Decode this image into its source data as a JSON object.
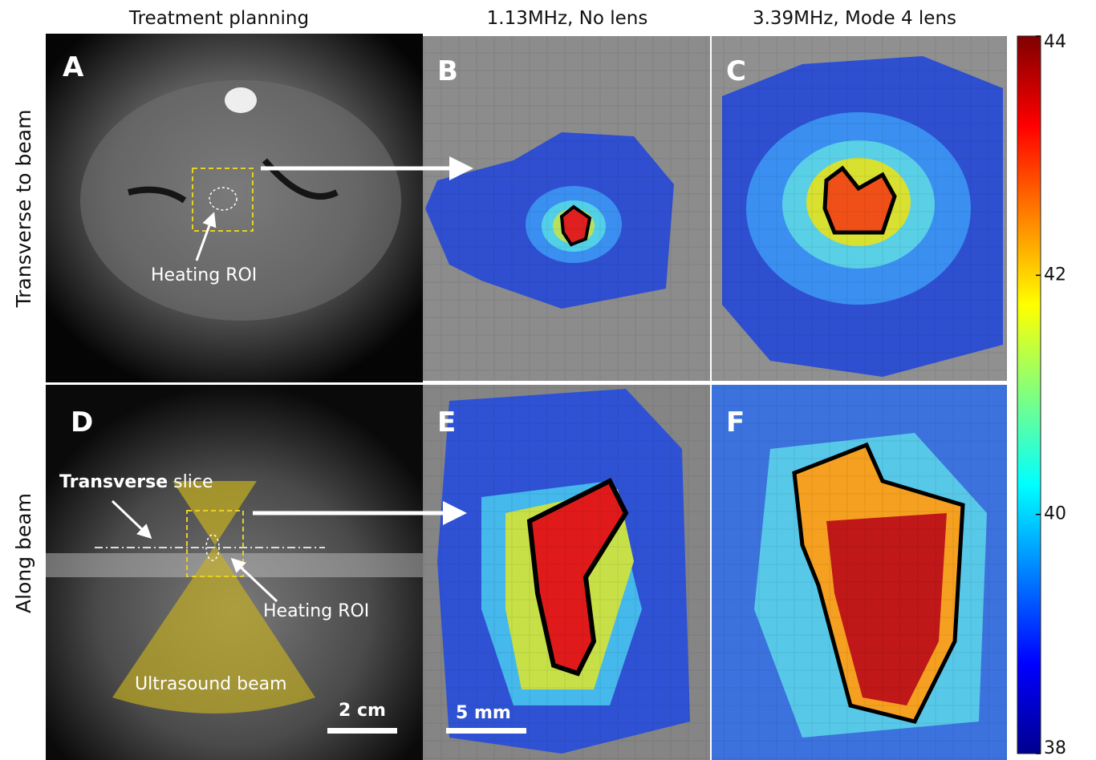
{
  "columns": [
    "Treatment planning",
    "1.13MHz, No lens",
    "3.39MHz, Mode 4 lens"
  ],
  "rows": [
    "Transverse to beam",
    "Along beam"
  ],
  "panels": [
    "A",
    "B",
    "C",
    "D",
    "E",
    "F"
  ],
  "annotations": {
    "heating_roi_a": "Heating ROI",
    "transverse_bold": "Transverse",
    "transverse_rest": "slice",
    "heating_roi_d": "Heating ROI",
    "beam": "Ultrasound beam",
    "scale_d": "2 cm",
    "scale_e": "5 mm"
  },
  "colorbar": {
    "lim": [
      38,
      44
    ],
    "ticks": [
      38,
      40,
      42,
      44
    ]
  }
}
